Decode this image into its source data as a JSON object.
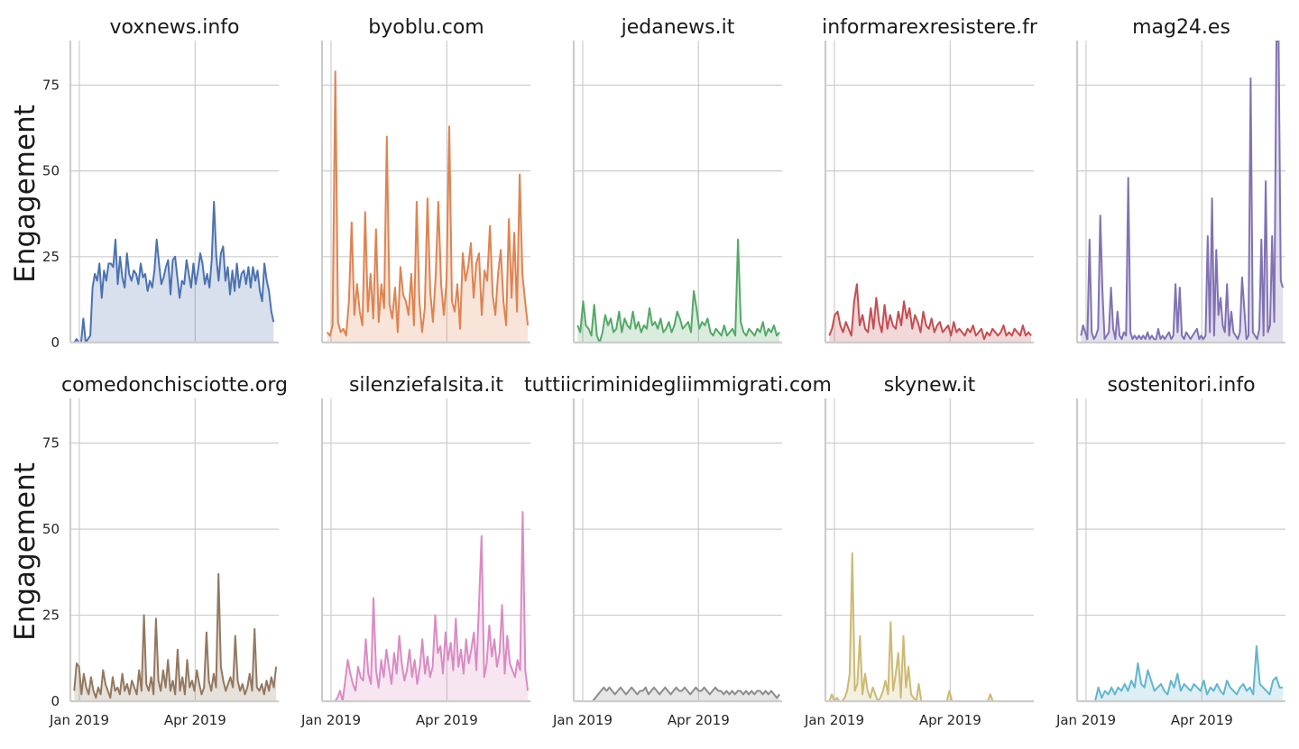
{
  "chart_data": {
    "type": "line",
    "ylabel": "Engagement",
    "ylim": [
      0,
      88
    ],
    "yticks": [
      "0",
      "25",
      "50",
      "75"
    ],
    "xticks": [
      {
        "date": "2019-01-01",
        "label": "Jan 2019"
      },
      {
        "date": "2019-04-01",
        "label": "Apr 2019"
      }
    ],
    "x_start": "2018-12-25",
    "x_end": "2019-06-05",
    "grid": true,
    "fill_under": true,
    "panels": [
      {
        "title": "voxnews.info",
        "color": "#4c72b0",
        "start": "2018-12-28",
        "end": "2019-06-01",
        "values": [
          0,
          1,
          0,
          0,
          7,
          0,
          1,
          2,
          16,
          20,
          18,
          23,
          13,
          21,
          18,
          23,
          23,
          22,
          30,
          17,
          25,
          19,
          16,
          26,
          20,
          18,
          21,
          20,
          17,
          23,
          19,
          20,
          15,
          18,
          16,
          21,
          30,
          23,
          17,
          19,
          22,
          24,
          14,
          24,
          25,
          19,
          13,
          18,
          17,
          24,
          20,
          16,
          23,
          17,
          21,
          26,
          23,
          17,
          20,
          16,
          24,
          41,
          25,
          18,
          26,
          28,
          18,
          22,
          14,
          21,
          15,
          23,
          16,
          20,
          21,
          17,
          22,
          16,
          22,
          18,
          21,
          15,
          12,
          23,
          18,
          15,
          9,
          6
        ]
      },
      {
        "title": "byoblu.com",
        "color": "#dd8452",
        "start": "2018-12-29",
        "end": "2019-06-03",
        "values": [
          3,
          2,
          5,
          79,
          6,
          3,
          4,
          2,
          12,
          35,
          8,
          17,
          9,
          5,
          38,
          9,
          20,
          7,
          33,
          6,
          17,
          10,
          60,
          11,
          7,
          16,
          3,
          22,
          14,
          12,
          8,
          20,
          5,
          41,
          12,
          3,
          10,
          42,
          15,
          6,
          19,
          41,
          17,
          8,
          18,
          63,
          12,
          9,
          17,
          4,
          26,
          18,
          22,
          29,
          13,
          23,
          26,
          8,
          21,
          18,
          34,
          14,
          8,
          20,
          27,
          12,
          5,
          36,
          13,
          32,
          9,
          49,
          20,
          12,
          5
        ]
      },
      {
        "title": "jedanews.it",
        "color": "#55a868",
        "start": "2018-12-28",
        "end": "2019-06-03",
        "values": [
          5,
          3,
          12,
          5,
          4,
          2,
          11,
          2,
          0,
          3,
          8,
          5,
          7,
          3,
          4,
          9,
          3,
          7,
          5,
          4,
          9,
          4,
          6,
          3,
          5,
          4,
          10,
          5,
          6,
          4,
          7,
          3,
          4,
          6,
          3,
          5,
          9,
          7,
          4,
          5,
          6,
          3,
          15,
          10,
          4,
          6,
          5,
          7,
          3,
          2,
          4,
          3,
          2,
          5,
          2,
          3,
          4,
          2,
          30,
          6,
          3,
          2,
          4,
          3,
          2,
          4,
          3,
          6,
          2,
          4,
          3,
          5,
          2,
          3
        ]
      },
      {
        "title": "informarexresistere.fr",
        "color": "#c44e52",
        "start": "2018-12-28",
        "end": "2019-06-03",
        "values": [
          2,
          4,
          8,
          9,
          5,
          3,
          6,
          4,
          2,
          12,
          17,
          5,
          8,
          4,
          3,
          10,
          4,
          13,
          6,
          3,
          11,
          4,
          8,
          5,
          4,
          9,
          5,
          12,
          7,
          10,
          4,
          8,
          6,
          3,
          9,
          5,
          4,
          7,
          3,
          5,
          6,
          3,
          4,
          5,
          2,
          6,
          3,
          4,
          3,
          2,
          4,
          3,
          5,
          2,
          3,
          4,
          1,
          3,
          2,
          4,
          3,
          2,
          3,
          5,
          2,
          3,
          2,
          4,
          3,
          2,
          5,
          2,
          3,
          2
        ]
      },
      {
        "title": "mag24.es",
        "color": "#8172b3",
        "start": "2018-12-28",
        "end": "2019-06-03",
        "values": [
          2,
          5,
          3,
          1,
          30,
          3,
          1,
          2,
          4,
          37,
          15,
          1,
          2,
          3,
          16,
          4,
          1,
          9,
          2,
          1,
          3,
          2,
          48,
          3,
          1,
          2,
          1,
          2,
          1,
          2,
          1,
          3,
          1,
          2,
          1,
          1,
          4,
          1,
          2,
          1,
          2,
          3,
          1,
          2,
          17,
          3,
          16,
          2,
          1,
          3,
          2,
          1,
          2,
          3,
          4,
          1,
          2,
          1,
          2,
          31,
          3,
          42,
          2,
          27,
          8,
          13,
          5,
          3,
          17,
          2,
          9,
          3,
          2,
          1,
          3,
          19,
          10,
          1,
          2,
          77,
          3,
          2,
          1,
          4,
          30,
          2,
          47,
          3,
          5,
          31,
          6,
          90,
          88,
          18,
          16
        ]
      },
      {
        "title": "comedonchisciotte.org",
        "color": "#937860",
        "start": "2018-12-28",
        "end": "2019-06-03",
        "values": [
          3,
          11,
          10,
          2,
          8,
          4,
          2,
          7,
          3,
          1,
          4,
          2,
          9,
          5,
          3,
          1,
          7,
          3,
          4,
          2,
          8,
          3,
          5,
          2,
          6,
          4,
          2,
          9,
          3,
          25,
          5,
          3,
          7,
          2,
          24,
          6,
          3,
          9,
          4,
          12,
          3,
          6,
          2,
          15,
          3,
          7,
          2,
          12,
          4,
          6,
          3,
          9,
          5,
          2,
          4,
          20,
          6,
          3,
          8,
          4,
          37,
          10,
          6,
          3,
          5,
          7,
          4,
          19,
          6,
          3,
          5,
          2,
          4,
          8,
          3,
          21,
          4,
          3,
          5,
          2,
          6,
          3,
          7,
          4,
          10
        ]
      },
      {
        "title": "silenziefalsita.it",
        "color": "#da8bc3",
        "start": "2018-12-31",
        "end": "2019-06-03",
        "values": [
          0,
          0,
          0,
          1,
          3,
          0,
          6,
          12,
          8,
          5,
          3,
          10,
          7,
          6,
          18,
          8,
          5,
          30,
          9,
          4,
          12,
          7,
          15,
          10,
          5,
          14,
          8,
          19,
          11,
          6,
          9,
          15,
          7,
          12,
          5,
          10,
          18,
          8,
          13,
          7,
          10,
          25,
          14,
          16,
          8,
          20,
          12,
          17,
          9,
          24,
          10,
          15,
          8,
          18,
          11,
          15,
          20,
          9,
          28,
          48,
          7,
          11,
          22,
          13,
          18,
          10,
          14,
          28,
          8,
          19,
          11,
          9,
          7,
          12,
          9,
          55,
          9,
          3
        ]
      },
      {
        "title": "tuttiicriminidegliimmigrati.com",
        "color": "#8c8c8c",
        "start": "2018-12-31",
        "end": "2019-06-03",
        "values": [
          0,
          0,
          0,
          0,
          0,
          1,
          2,
          3,
          4,
          3,
          4,
          3,
          2,
          3,
          4,
          3,
          2,
          3,
          4,
          3,
          2,
          3,
          3,
          4,
          2,
          3,
          4,
          3,
          2,
          3,
          4,
          3,
          2,
          3,
          4,
          3,
          3,
          4,
          3,
          2,
          3,
          4,
          3,
          3,
          4,
          3,
          2,
          3,
          4,
          3,
          3,
          2,
          3,
          2,
          3,
          2,
          3,
          3,
          2,
          3,
          2,
          3,
          2,
          3,
          3,
          2,
          3,
          2,
          3,
          2,
          1,
          2
        ]
      },
      {
        "title": "skynew.it",
        "color": "#ccb974",
        "start": "2018-12-28",
        "end": "2019-06-03",
        "values": [
          0,
          2,
          0,
          1,
          0,
          0,
          1,
          3,
          8,
          43,
          3,
          5,
          19,
          2,
          8,
          3,
          1,
          4,
          2,
          0,
          1,
          3,
          6,
          2,
          23,
          3,
          8,
          14,
          1,
          19,
          4,
          10,
          2,
          1,
          0,
          5,
          0,
          0,
          0,
          0,
          0,
          0,
          0,
          0,
          0,
          0,
          0,
          3,
          0,
          0,
          0,
          0,
          0,
          0,
          0,
          0,
          0,
          0,
          0,
          0,
          0,
          0,
          0,
          2,
          0,
          0,
          0,
          0,
          0,
          0,
          0,
          0,
          0,
          0,
          0,
          0,
          0,
          0,
          0,
          0
        ]
      },
      {
        "title": "sostenitori.info",
        "color": "#64b5cd",
        "start": "2019-01-08",
        "end": "2019-06-03",
        "values": [
          0,
          4,
          1,
          3,
          2,
          4,
          2,
          4,
          3,
          5,
          3,
          6,
          4,
          11,
          5,
          4,
          9,
          6,
          3,
          4,
          5,
          3,
          2,
          6,
          4,
          8,
          3,
          5,
          4,
          3,
          5,
          4,
          3,
          6,
          2,
          4,
          3,
          5,
          3,
          2,
          6,
          4,
          3,
          2,
          4,
          5,
          3,
          4,
          2,
          16,
          5,
          4,
          3,
          2,
          6,
          7,
          4,
          4
        ]
      }
    ]
  }
}
